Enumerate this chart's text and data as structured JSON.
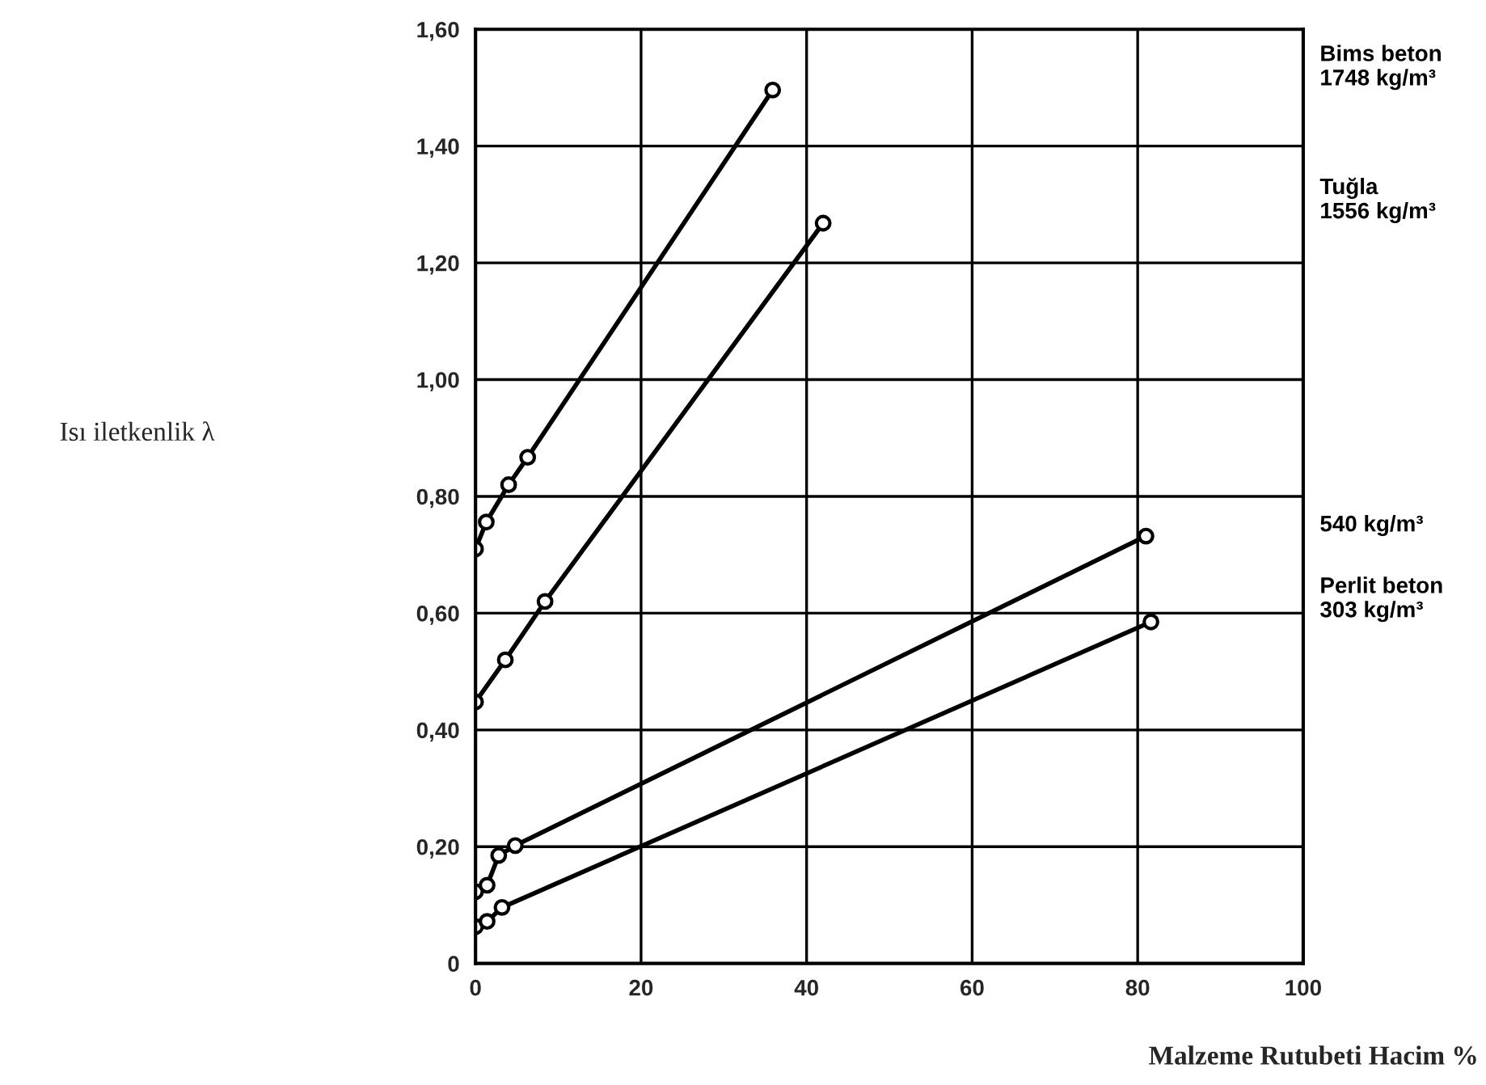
{
  "chart_data": {
    "type": "line",
    "xlabel": "Malzeme Rutubeti Hacim %",
    "annotations": [
      "Isı iletkenlik λ"
    ],
    "xlim": [
      0,
      100
    ],
    "xticks": [
      0,
      20,
      40,
      60,
      80,
      100
    ],
    "ylim": [
      0,
      1.6
    ],
    "yticks": [
      {
        "value": 0,
        "label": "0"
      },
      {
        "value": 0.2,
        "label": "0,20"
      },
      {
        "value": 0.4,
        "label": "0,40"
      },
      {
        "value": 0.6,
        "label": "0,60"
      },
      {
        "value": 0.8,
        "label": "0,80"
      },
      {
        "value": 1.0,
        "label": "1,00"
      },
      {
        "value": 1.2,
        "label": "1,20"
      },
      {
        "value": 1.4,
        "label": "1,40"
      },
      {
        "value": 1.6,
        "label": "1,60"
      }
    ],
    "grid": true,
    "marker": "circle",
    "line_style": "solid",
    "legend": false,
    "series": [
      {
        "name": "Bims beton\n1748 kg/m³",
        "color": "#000000",
        "x": [
          0,
          1.3,
          4,
          6.3,
          35.9
        ],
        "values": [
          0.71,
          0.756,
          0.82,
          0.867,
          1.496
        ]
      },
      {
        "name": "Tuğla\n1556 kg/m³",
        "color": "#000000",
        "x": [
          0,
          3.6,
          8.4,
          42
        ],
        "values": [
          0.448,
          0.52,
          0.62,
          1.268
        ]
      },
      {
        "name": "540 kg/m³",
        "color": "#000000",
        "x": [
          0,
          1.4,
          2.8,
          4.8,
          81
        ],
        "values": [
          0.123,
          0.134,
          0.185,
          0.202,
          0.732
        ]
      },
      {
        "name": "Perlit beton\n303 kg/m³",
        "color": "#000000",
        "x": [
          0,
          1.4,
          3.2,
          81.6
        ],
        "values": [
          0.063,
          0.072,
          0.096,
          0.585
        ]
      }
    ]
  }
}
